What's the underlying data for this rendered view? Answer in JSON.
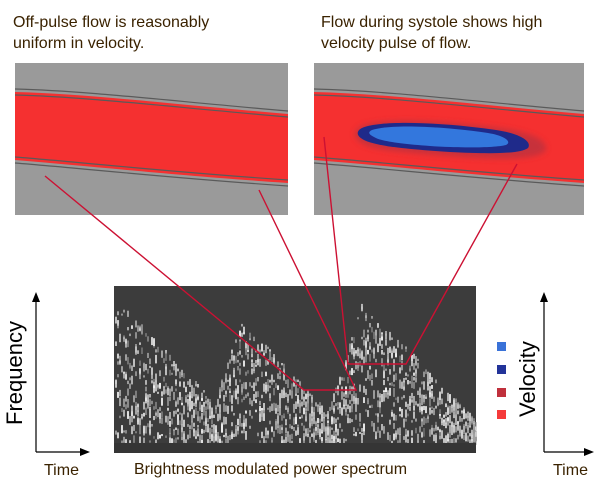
{
  "captions": {
    "left": [
      "Off-pulse flow is reasonably",
      "uniform in velocity."
    ],
    "right": [
      "Flow during systole shows high",
      "velocity pulse of flow."
    ]
  },
  "axes": {
    "frequency_label": "Frequency",
    "time_label_left": "Time",
    "velocity_label": "Velocity",
    "time_label_right": "Time"
  },
  "spectrum_label": "Brightness modulated power spectrum",
  "colors": {
    "vessel_wall": "#9a9a9a",
    "blood_flow": "#f53030",
    "high_velocity_light": "#3377dd",
    "high_velocity_dark": "#1f2a8a",
    "pointer_line": "#cc1133",
    "spectrum_bg": "#3c3c3c",
    "spectrum_signal": "#c8c8c8"
  },
  "velocity_legend": [
    {
      "name": "velocity-swatch-light-blue",
      "color": "#3a72d8"
    },
    {
      "name": "velocity-swatch-dark-blue",
      "color": "#223399"
    },
    {
      "name": "velocity-swatch-dark-red",
      "color": "#c0303c"
    },
    {
      "name": "velocity-swatch-red",
      "color": "#f53a3a"
    }
  ]
}
